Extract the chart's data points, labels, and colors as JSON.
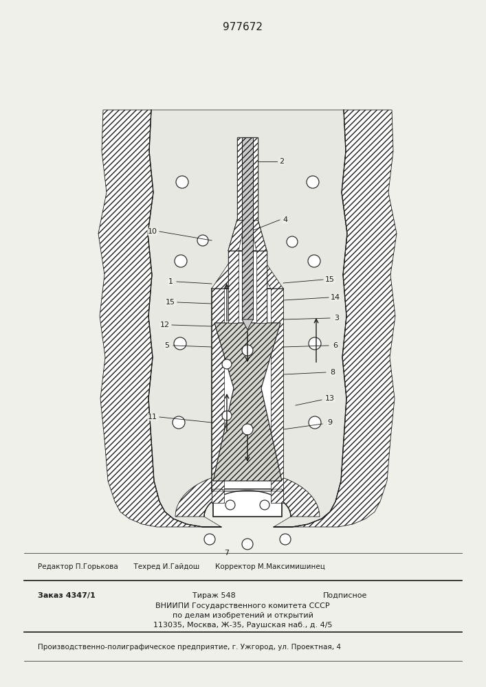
{
  "patent_number": "977672",
  "bg_color": "#f0f0eb",
  "line_color": "#1a1a1a",
  "footer_line1": "Редактор П.Горькова       Техред И.Гайдош       Корректор М.Максимишинец",
  "footer_line2_left": "Заказ 4347/1",
  "footer_line2_mid": "Тираж 548",
  "footer_line2_right": "Подписное",
  "footer_line3": "ВНИИПИ Государственного комитета СССР",
  "footer_line4": "по делам изобретений и открытий",
  "footer_line5": "113035, Москва, Ж-35, Раушская наб., д. 4/5",
  "footer_line6": "Производственно-полиграфическое предприятие, г. Ужгород, ул. Проектная, 4"
}
